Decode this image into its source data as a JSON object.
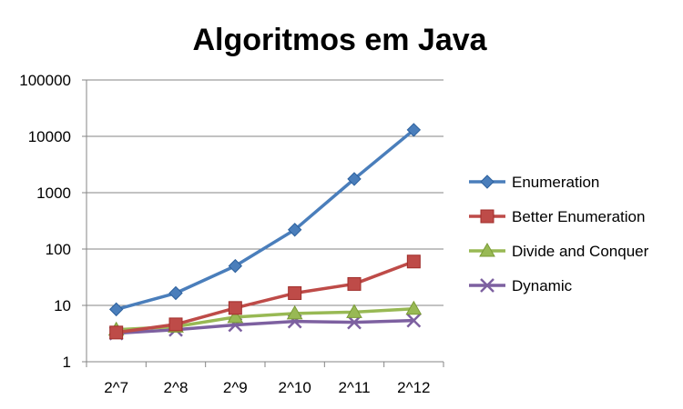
{
  "chart_data": {
    "type": "line",
    "title": "Algoritmos em Java",
    "xlabel": "",
    "ylabel": "",
    "categories": [
      "2^7",
      "2^8",
      "2^9",
      "2^10",
      "2^11",
      "2^12"
    ],
    "y_scale": "log",
    "ylim": [
      1,
      100000
    ],
    "y_ticks": [
      1,
      10,
      100,
      1000,
      10000,
      100000
    ],
    "y_tick_labels": [
      "1",
      "10",
      "100",
      "1000",
      "10000",
      "100000"
    ],
    "grid": "horizontal",
    "legend_position": "right",
    "series": [
      {
        "name": "Enumeration",
        "color": "#4a7ebb",
        "marker": "diamond",
        "values": [
          8.5,
          16.5,
          50,
          220,
          1750,
          13000
        ]
      },
      {
        "name": "Better Enumeration",
        "color": "#be4b48",
        "marker": "square",
        "values": [
          3.3,
          4.6,
          9,
          16.5,
          24,
          60
        ]
      },
      {
        "name": "Divide and Conquer",
        "color": "#98b954",
        "marker": "triangle",
        "values": [
          3.7,
          4.2,
          6.2,
          7.2,
          7.6,
          8.7
        ]
      },
      {
        "name": "Dynamic",
        "color": "#7d60a0",
        "marker": "x",
        "values": [
          3.2,
          3.7,
          4.5,
          5.2,
          5,
          5.4
        ]
      }
    ]
  }
}
